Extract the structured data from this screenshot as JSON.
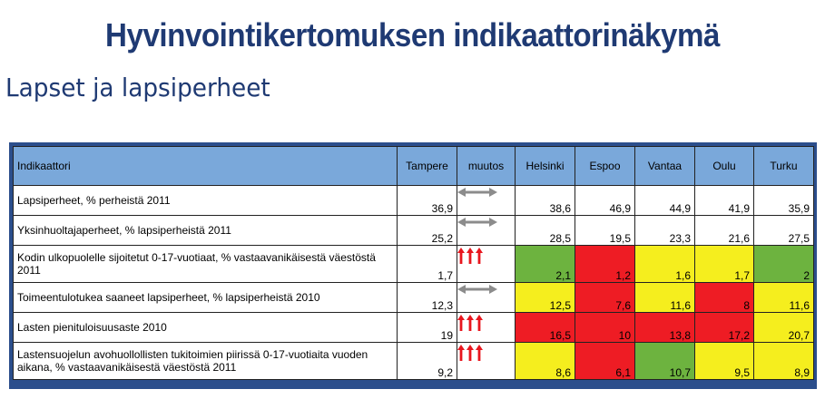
{
  "title": "Hyvinvointikertomuksen indikaattorinäkymä",
  "subtitle": "Lapset ja lapsiperheet",
  "colors": {
    "green": "#6DB33F",
    "red": "#EE1C24",
    "yellow": "#F5EE1E",
    "header": "#7AA8DA",
    "title": "#1F3A73"
  },
  "table": {
    "headers": {
      "indicator": "Indikaattori",
      "tampere": "Tampere",
      "change": "muutos",
      "helsinki": "Helsinki",
      "espoo": "Espoo",
      "vantaa": "Vantaa",
      "oulu": "Oulu",
      "turku": "Turku"
    },
    "rows": [
      {
        "label": "Lapsiperheet, % perheistä 2011",
        "tampere": "36,9",
        "change_icon": "double-arrow-icon",
        "helsinki": "38,6",
        "espoo": "46,9",
        "vantaa": "44,9",
        "oulu": "41,9",
        "turku": "35,9"
      },
      {
        "label": "Yksinhuoltajaperheet, %  lapsiperheistä 2011",
        "tampere": "25,2",
        "change_icon": "double-arrow-icon",
        "helsinki": "28,5",
        "espoo": "19,5",
        "vantaa": "23,3",
        "oulu": "21,6",
        "turku": "27,5"
      },
      {
        "label": "Kodin ulkopuolelle sijoitetut 0-17-vuotiaat, % vastaavanikäisestä väestöstä 2011",
        "tampere": "1,7",
        "change_icon": "triple-up-arrow-icon",
        "helsinki": "2,1",
        "espoo": "1,2",
        "vantaa": "1,6",
        "oulu": "1,7",
        "turku": "2",
        "status": {
          "helsinki": "green",
          "espoo": "red",
          "vantaa": "yellow",
          "oulu": "yellow",
          "turku": "green"
        }
      },
      {
        "label": "Toimeentulotukea saaneet lapsiperheet, % lapsiperheistä 2010",
        "tampere": "12,3",
        "change_icon": "double-arrow-icon",
        "helsinki": "12,5",
        "espoo": "7,6",
        "vantaa": "11,6",
        "oulu": "8",
        "turku": "11,6",
        "status": {
          "helsinki": "yellow",
          "espoo": "red",
          "vantaa": "yellow",
          "oulu": "red",
          "turku": "yellow"
        }
      },
      {
        "label": "Lasten pienituloisuusaste 2010",
        "tampere": "19",
        "change_icon": "triple-up-arrow-icon",
        "helsinki": "16,5",
        "espoo": "10",
        "vantaa": "13,8",
        "oulu": "17,2",
        "turku": "20,7",
        "status": {
          "helsinki": "red",
          "espoo": "red",
          "vantaa": "red",
          "oulu": "red",
          "turku": "yellow"
        }
      },
      {
        "label": "Lastensuojelun avohuollollisten tukitoimien piirissä 0-17-vuotiaita vuoden aikana, % vastaavanikäisestä väestöstä 2011",
        "tampere": "9,2",
        "change_icon": "triple-up-arrow-icon",
        "helsinki": "8,6",
        "espoo": "6,1",
        "vantaa": "10,7",
        "oulu": "9,5",
        "turku": "8,9",
        "status": {
          "helsinki": "yellow",
          "espoo": "red",
          "vantaa": "green",
          "oulu": "yellow",
          "turku": "yellow"
        }
      }
    ]
  }
}
